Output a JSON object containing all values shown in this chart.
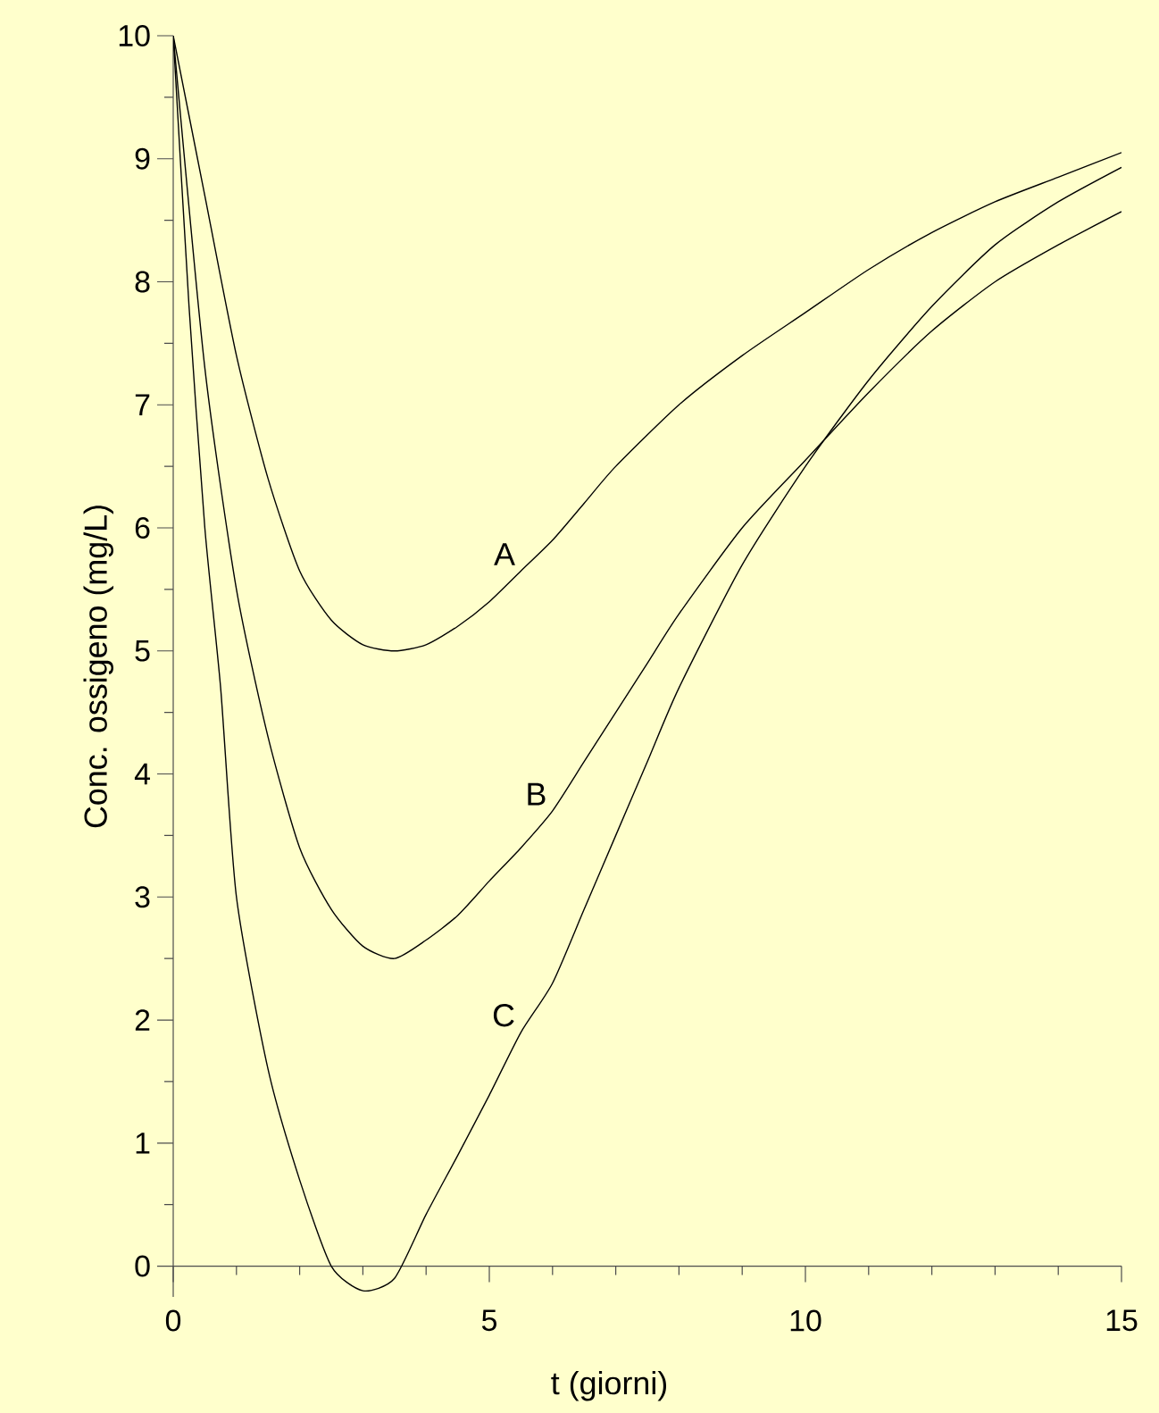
{
  "chart_data": {
    "type": "line",
    "xlabel": "t (giorni)",
    "ylabel": "Conc. ossigeno (mg/L)",
    "xlim": [
      0,
      15
    ],
    "ylim": [
      -0.25,
      10
    ],
    "xticks": [
      0,
      {
        "value": 1,
        "label": null
      },
      {
        "value": 2,
        "label": null
      },
      {
        "value": 3,
        "label": null
      },
      {
        "value": 4,
        "label": null
      },
      5,
      {
        "value": 6,
        "label": null
      },
      {
        "value": 7,
        "label": null
      },
      {
        "value": 8,
        "label": null
      },
      {
        "value": 9,
        "label": null
      },
      10,
      {
        "value": 11,
        "label": null
      },
      {
        "value": 12,
        "label": null
      },
      {
        "value": 13,
        "label": null
      },
      {
        "value": 14,
        "label": null
      },
      15
    ],
    "yticks": [
      0,
      {
        "value": 0.5,
        "label": null
      },
      1,
      {
        "value": 1.5,
        "label": null
      },
      2,
      {
        "value": 2.5,
        "label": null
      },
      3,
      {
        "value": 3.5,
        "label": null
      },
      4,
      {
        "value": 4.5,
        "label": null
      },
      5,
      {
        "value": 5.5,
        "label": null
      },
      6,
      {
        "value": 6.5,
        "label": null
      },
      7,
      {
        "value": 7.5,
        "label": null
      },
      8,
      {
        "value": 8.5,
        "label": null
      },
      9,
      {
        "value": 9.5,
        "label": null
      },
      10
    ],
    "grid": false,
    "legend": false,
    "marker": "none",
    "line_style": "solid",
    "series": [
      {
        "name": "A",
        "color": "#000000",
        "x": [
          0,
          0.5,
          1,
          1.5,
          2,
          2.5,
          3,
          3.5,
          4,
          4.5,
          5,
          5.5,
          6,
          6.5,
          7,
          8,
          9,
          10,
          11,
          12,
          13,
          14,
          15
        ],
        "values": [
          10,
          8.7,
          7.4,
          6.4,
          5.65,
          5.25,
          5.05,
          5.0,
          5.05,
          5.2,
          5.4,
          5.65,
          5.9,
          6.2,
          6.5,
          7.0,
          7.4,
          7.75,
          8.1,
          8.4,
          8.65,
          8.85,
          9.05
        ]
      },
      {
        "name": "B",
        "color": "#000000",
        "x": [
          0,
          0.5,
          1,
          1.5,
          2,
          2.5,
          3,
          3.5,
          4,
          4.5,
          5,
          5.5,
          6,
          6.5,
          7,
          7.5,
          8,
          9,
          10,
          11,
          12,
          13,
          14,
          15
        ],
        "values": [
          10,
          7.3,
          5.5,
          4.3,
          3.4,
          2.9,
          2.6,
          2.5,
          2.65,
          2.85,
          3.13,
          3.4,
          3.7,
          4.1,
          4.5,
          4.9,
          5.3,
          6.0,
          6.55,
          7.1,
          7.6,
          8.0,
          8.3,
          8.57
        ]
      },
      {
        "name": "C",
        "color": "#000000",
        "x": [
          0,
          0.25,
          0.5,
          0.75,
          1,
          1.5,
          2,
          2.5,
          3,
          3.5,
          4,
          4.5,
          5,
          5.5,
          6,
          6.5,
          7,
          7.5,
          8,
          9,
          10,
          11,
          12,
          13,
          14,
          15
        ],
        "values": [
          10,
          7.8,
          6.0,
          4.7,
          3.0,
          1.6,
          0.7,
          0.0,
          -0.2,
          -0.1,
          0.42,
          0.9,
          1.39,
          1.9,
          2.3,
          2.9,
          3.5,
          4.1,
          4.7,
          5.7,
          6.5,
          7.2,
          7.8,
          8.3,
          8.65,
          8.93
        ]
      }
    ]
  }
}
